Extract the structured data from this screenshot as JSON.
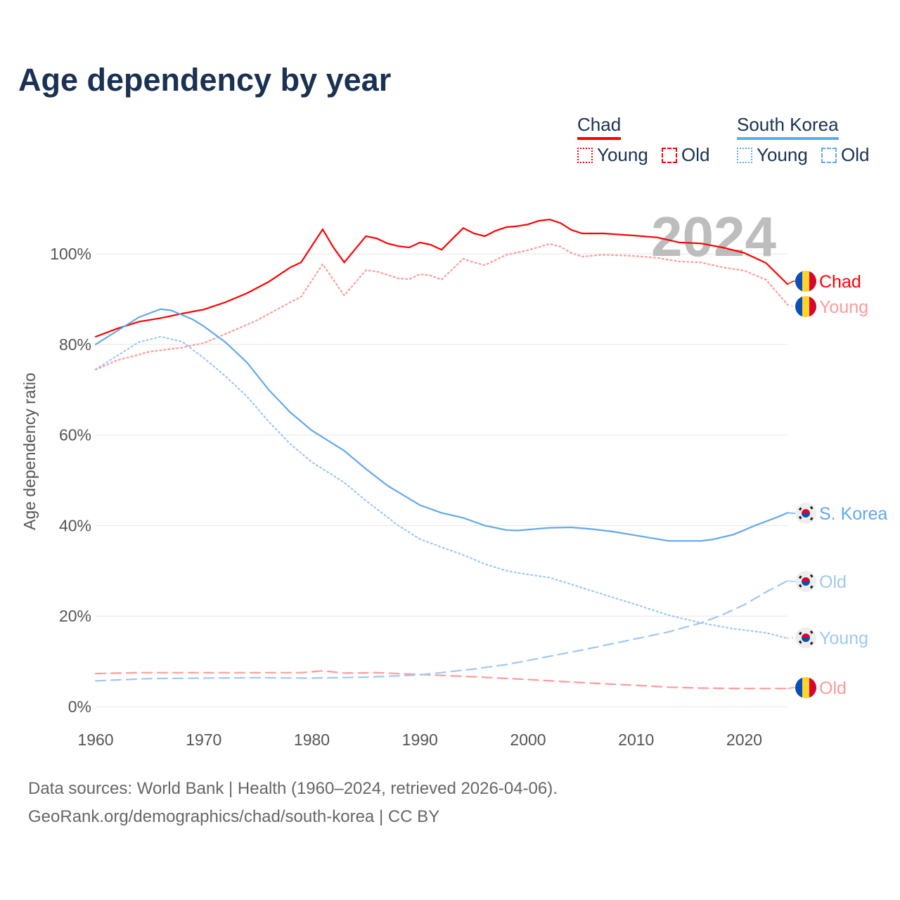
{
  "title": "Age dependency by year",
  "legend": {
    "groups": [
      {
        "name": "Chad",
        "color": "#ff0000",
        "young": "Young",
        "old": "Old"
      },
      {
        "name": "South Korea",
        "color": "#62a8ec",
        "young": "Young",
        "old": "Old"
      }
    ]
  },
  "footer": {
    "line1": "Data sources: World Bank | Health (1960–2024, retrieved 2026-04-06).",
    "line2": "GeoRank.org/demographics/chad/south-korea | CC BY"
  },
  "chart_data": {
    "type": "line",
    "title": "Age dependency by year",
    "xlabel": "",
    "ylabel": "Age dependency ratio",
    "xlim": [
      1960,
      2024
    ],
    "ylim": [
      0,
      110
    ],
    "xticks": [
      "1960",
      "1970",
      "1980",
      "1990",
      "2000",
      "2010",
      "2020"
    ],
    "yticks": [
      "0%",
      "20%",
      "40%",
      "60%",
      "80%",
      "100%"
    ],
    "ytick_values": [
      0,
      20,
      40,
      60,
      80,
      100
    ],
    "xtick_values": [
      1960,
      1970,
      1980,
      1990,
      2000,
      2010,
      2020
    ],
    "year_watermark": "2024",
    "grid": true,
    "series": [
      {
        "name": "Chad",
        "label": "Chad",
        "style": "solid",
        "color": "#ff0000",
        "flag": "chad",
        "points": [
          [
            1960,
            81.7
          ],
          [
            1962,
            83.5
          ],
          [
            1964,
            85
          ],
          [
            1966,
            85.8
          ],
          [
            1968,
            86.8
          ],
          [
            1970,
            87.7
          ],
          [
            1972,
            89.3
          ],
          [
            1974,
            91.3
          ],
          [
            1976,
            93.8
          ],
          [
            1978,
            97
          ],
          [
            1979,
            98.1
          ],
          [
            1981,
            105.4
          ],
          [
            1982,
            101.4
          ],
          [
            1983,
            98.1
          ],
          [
            1985,
            103.9
          ],
          [
            1986,
            103.4
          ],
          [
            1987,
            102.3
          ],
          [
            1988,
            101.7
          ],
          [
            1989,
            101.4
          ],
          [
            1990,
            102.5
          ],
          [
            1991,
            102
          ],
          [
            1992,
            100.9
          ],
          [
            1993,
            103.3
          ],
          [
            1994,
            105.7
          ],
          [
            1995,
            104.5
          ],
          [
            1996,
            103.9
          ],
          [
            1997,
            105.1
          ],
          [
            1998,
            105.9
          ],
          [
            1999,
            106.1
          ],
          [
            2000,
            106.5
          ],
          [
            2001,
            107.3
          ],
          [
            2002,
            107.6
          ],
          [
            2003,
            106.8
          ],
          [
            2004,
            105.3
          ],
          [
            2005,
            104.5
          ],
          [
            2007,
            104.5
          ],
          [
            2010,
            104
          ],
          [
            2012,
            103.6
          ],
          [
            2014,
            102.5
          ],
          [
            2016,
            102.3
          ],
          [
            2018,
            101.4
          ],
          [
            2020,
            100.2
          ],
          [
            2022,
            98
          ],
          [
            2024,
            93.3
          ]
        ]
      },
      {
        "name": "Chad Young",
        "label": "Young",
        "style": "dotted",
        "color": "#ff9a9a",
        "flag": "chad",
        "points": [
          [
            1960,
            74.4
          ],
          [
            1962,
            76.5
          ],
          [
            1965,
            78.4
          ],
          [
            1968,
            79.3
          ],
          [
            1970,
            80.3
          ],
          [
            1972,
            82.3
          ],
          [
            1975,
            85.4
          ],
          [
            1978,
            89.3
          ],
          [
            1979,
            90.5
          ],
          [
            1981,
            97.7
          ],
          [
            1983,
            90.8
          ],
          [
            1985,
            96.4
          ],
          [
            1986,
            96.1
          ],
          [
            1988,
            94.6
          ],
          [
            1989,
            94.4
          ],
          [
            1990,
            95.5
          ],
          [
            1991,
            95.2
          ],
          [
            1992,
            94.3
          ],
          [
            1994,
            98.9
          ],
          [
            1995,
            98.1
          ],
          [
            1996,
            97.5
          ],
          [
            1998,
            99.8
          ],
          [
            2000,
            100.8
          ],
          [
            2002,
            102.2
          ],
          [
            2003,
            101.6
          ],
          [
            2004,
            100.2
          ],
          [
            2005,
            99.4
          ],
          [
            2007,
            99.8
          ],
          [
            2010,
            99.5
          ],
          [
            2012,
            99.1
          ],
          [
            2014,
            98.3
          ],
          [
            2016,
            98.1
          ],
          [
            2018,
            97
          ],
          [
            2020,
            96.3
          ],
          [
            2022,
            94.3
          ],
          [
            2024,
            88.8
          ]
        ]
      },
      {
        "name": "Chad Old",
        "label": "Old",
        "style": "dashed",
        "color": "#ff9a9a",
        "flag": "chad",
        "points": [
          [
            1960,
            7.3
          ],
          [
            1964,
            7.5
          ],
          [
            1970,
            7.5
          ],
          [
            1979,
            7.5
          ],
          [
            1981,
            7.9
          ],
          [
            1983,
            7.4
          ],
          [
            1986,
            7.5
          ],
          [
            1990,
            7.1
          ],
          [
            1995,
            6.6
          ],
          [
            2000,
            6
          ],
          [
            2005,
            5.3
          ],
          [
            2010,
            4.7
          ],
          [
            2013,
            4.3
          ],
          [
            2016,
            4.1
          ],
          [
            2020,
            4
          ],
          [
            2024,
            4
          ]
        ]
      },
      {
        "name": "South Korea",
        "label": "S. Korea",
        "style": "solid",
        "color": "#62a8ec",
        "flag": "south-korea",
        "points": [
          [
            1960,
            80
          ],
          [
            1962,
            83
          ],
          [
            1964,
            86
          ],
          [
            1966,
            87.8
          ],
          [
            1967,
            87.5
          ],
          [
            1969,
            85.5
          ],
          [
            1970,
            84
          ],
          [
            1972,
            80.5
          ],
          [
            1974,
            76
          ],
          [
            1976,
            70
          ],
          [
            1978,
            65
          ],
          [
            1980,
            61
          ],
          [
            1982,
            58
          ],
          [
            1983,
            56.5
          ],
          [
            1985,
            52.5
          ],
          [
            1987,
            48.8
          ],
          [
            1990,
            44.5
          ],
          [
            1992,
            42.8
          ],
          [
            1994,
            41.7
          ],
          [
            1996,
            40
          ],
          [
            1998,
            39
          ],
          [
            1999,
            38.9
          ],
          [
            2002,
            39.5
          ],
          [
            2004,
            39.6
          ],
          [
            2006,
            39.2
          ],
          [
            2008,
            38.6
          ],
          [
            2010,
            37.8
          ],
          [
            2012,
            37
          ],
          [
            2013,
            36.6
          ],
          [
            2016,
            36.6
          ],
          [
            2017,
            36.9
          ],
          [
            2019,
            38
          ],
          [
            2021,
            40
          ],
          [
            2023,
            41.8
          ],
          [
            2024,
            42.8
          ]
        ]
      },
      {
        "name": "South Korea Old",
        "label": "Old",
        "style": "dashed",
        "color": "#9fc8f2",
        "flag": "south-korea",
        "points": [
          [
            1960,
            5.7
          ],
          [
            1965,
            6.2
          ],
          [
            1975,
            6.4
          ],
          [
            1980,
            6.3
          ],
          [
            1985,
            6.5
          ],
          [
            1990,
            7
          ],
          [
            1995,
            8.3
          ],
          [
            1998,
            9.3
          ],
          [
            2000,
            10.2
          ],
          [
            2005,
            12.5
          ],
          [
            2010,
            15
          ],
          [
            2013,
            16.5
          ],
          [
            2016,
            18.5
          ],
          [
            2018,
            20.3
          ],
          [
            2020,
            22.5
          ],
          [
            2022,
            25.3
          ],
          [
            2024,
            27.8
          ]
        ]
      },
      {
        "name": "South Korea Young",
        "label": "Young",
        "style": "dotted",
        "color": "#9fc8f2",
        "flag": "south-korea",
        "points": [
          [
            1960,
            74.5
          ],
          [
            1962,
            77.5
          ],
          [
            1964,
            80.5
          ],
          [
            1966,
            81.7
          ],
          [
            1968,
            80.6
          ],
          [
            1970,
            77
          ],
          [
            1972,
            73
          ],
          [
            1974,
            68.5
          ],
          [
            1976,
            63
          ],
          [
            1978,
            58
          ],
          [
            1980,
            54
          ],
          [
            1983,
            49.5
          ],
          [
            1985,
            45.5
          ],
          [
            1988,
            40
          ],
          [
            1990,
            37
          ],
          [
            1992,
            35.2
          ],
          [
            1994,
            33.5
          ],
          [
            1996,
            31.5
          ],
          [
            1998,
            30
          ],
          [
            2000,
            29.2
          ],
          [
            2002,
            28.5
          ],
          [
            2004,
            27
          ],
          [
            2006,
            25.5
          ],
          [
            2008,
            24
          ],
          [
            2010,
            22.5
          ],
          [
            2013,
            20.2
          ],
          [
            2016,
            18.5
          ],
          [
            2019,
            17.2
          ],
          [
            2022,
            16.3
          ],
          [
            2024,
            15.1
          ]
        ]
      }
    ]
  }
}
